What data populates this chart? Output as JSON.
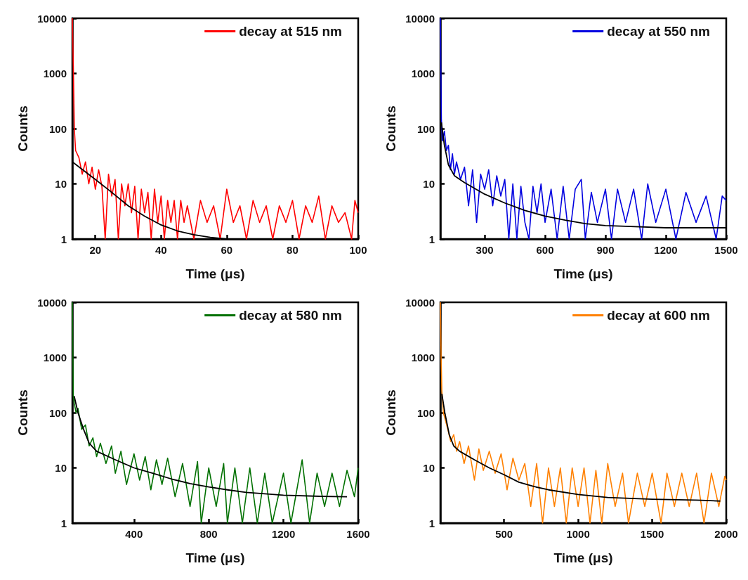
{
  "chart_data": [
    {
      "type": "line",
      "xlabel": "Time (μs)",
      "ylabel": "Counts",
      "xlim": [
        13,
        100
      ],
      "xticks": [
        20,
        40,
        60,
        80,
        100
      ],
      "ylim": [
        1,
        10000
      ],
      "yticks": [
        1,
        10,
        100,
        1000,
        10000
      ],
      "log": "y",
      "legend": "top right",
      "series": [
        {
          "name": "decay at 515 nm",
          "color": "#ff0000",
          "x": [
            13,
            13.3,
            13.6,
            14,
            15,
            16,
            17,
            18,
            19,
            20,
            21,
            22,
            23,
            24,
            25,
            26,
            27,
            28,
            29,
            30,
            31,
            32,
            33,
            34,
            35,
            36,
            37,
            38,
            39,
            40,
            41,
            42,
            43,
            44,
            45,
            46,
            47,
            48,
            50,
            52,
            54,
            56,
            58,
            60,
            62,
            64,
            66,
            68,
            70,
            72,
            74,
            76,
            78,
            80,
            82,
            84,
            86,
            88,
            90,
            92,
            94,
            96,
            98,
            99,
            100
          ],
          "values": [
            10000,
            1300,
            100,
            40,
            30,
            15,
            25,
            10,
            20,
            8,
            18,
            9,
            1,
            15,
            6,
            12,
            1,
            10,
            4,
            10,
            3,
            9,
            1,
            8,
            3,
            7,
            1,
            8,
            2,
            6,
            1,
            5,
            2,
            5,
            1,
            5,
            2,
            4,
            1,
            5,
            2,
            4,
            1,
            8,
            2,
            4,
            1,
            5,
            2,
            4,
            1,
            4,
            2,
            5,
            1,
            4,
            2,
            6,
            1,
            4,
            2,
            3,
            1,
            5,
            3
          ]
        },
        {
          "color": "#000000",
          "x": [
            13,
            20,
            25,
            30,
            35,
            40,
            45,
            50,
            55,
            60
          ],
          "values": [
            25,
            12,
            7,
            4,
            2.6,
            1.8,
            1.4,
            1.2,
            1.07,
            1
          ]
        }
      ]
    },
    {
      "type": "line",
      "xlabel": "Time (μs)",
      "ylabel": "Counts",
      "xlim": [
        80,
        1500
      ],
      "xticks": [
        300,
        600,
        900,
        1200,
        1500
      ],
      "ylim": [
        1,
        10000
      ],
      "yticks": [
        1,
        10,
        100,
        1000,
        10000
      ],
      "log": "y",
      "legend": "top right",
      "series": [
        {
          "name": "decay at 550 nm",
          "color": "#0000e0",
          "x": [
            80,
            85,
            90,
            100,
            110,
            120,
            130,
            140,
            150,
            160,
            180,
            200,
            220,
            240,
            260,
            280,
            300,
            320,
            340,
            360,
            380,
            400,
            420,
            440,
            460,
            480,
            500,
            520,
            540,
            560,
            580,
            600,
            630,
            660,
            690,
            720,
            750,
            780,
            800,
            830,
            860,
            900,
            930,
            960,
            1000,
            1040,
            1080,
            1110,
            1150,
            1200,
            1250,
            1300,
            1350,
            1400,
            1450,
            1480,
            1500
          ],
          "values": [
            10000,
            150,
            60,
            90,
            40,
            50,
            18,
            35,
            15,
            25,
            12,
            20,
            4,
            18,
            2,
            15,
            8,
            18,
            4,
            14,
            6,
            12,
            1,
            10,
            1,
            9,
            2,
            1,
            9,
            3,
            10,
            2,
            8,
            1,
            9,
            1,
            8,
            12,
            1,
            7,
            2,
            8,
            1,
            8,
            2,
            8,
            1,
            10,
            2,
            8,
            1,
            7,
            2,
            6,
            1,
            6,
            5
          ]
        },
        {
          "color": "#000000",
          "x": [
            85,
            100,
            120,
            150,
            200,
            300,
            400,
            500,
            600,
            700,
            800,
            900,
            1000,
            1200,
            1500
          ],
          "values": [
            130,
            50,
            22,
            14,
            10.5,
            6.5,
            4.5,
            3.3,
            2.6,
            2.2,
            1.9,
            1.75,
            1.7,
            1.6,
            1.6
          ]
        }
      ]
    },
    {
      "type": "line",
      "xlabel": "Time (μs)",
      "ylabel": "Counts",
      "xlim": [
        70,
        1600
      ],
      "xticks": [
        400,
        800,
        1200,
        1600
      ],
      "ylim": [
        1,
        10000
      ],
      "yticks": [
        1,
        10,
        100,
        1000,
        10000
      ],
      "log": "y",
      "legend": "top right",
      "series": [
        {
          "name": "decay at 580 nm",
          "color": "#007000",
          "x": [
            70,
            75,
            80,
            90,
            100,
            120,
            140,
            160,
            180,
            200,
            220,
            250,
            280,
            300,
            330,
            360,
            400,
            430,
            460,
            490,
            520,
            550,
            580,
            620,
            660,
            700,
            740,
            760,
            800,
            840,
            880,
            900,
            940,
            980,
            1020,
            1060,
            1100,
            1140,
            1200,
            1240,
            1300,
            1340,
            1380,
            1420,
            1460,
            1500,
            1540,
            1580,
            1600
          ],
          "values": [
            10000,
            200,
            150,
            100,
            120,
            50,
            60,
            25,
            35,
            16,
            28,
            12,
            25,
            8,
            20,
            5,
            18,
            6,
            16,
            4,
            14,
            5,
            15,
            3,
            12,
            2,
            13,
            1,
            10,
            2,
            12,
            1,
            10,
            1,
            10,
            1,
            8,
            1,
            8,
            1,
            14,
            1,
            8,
            2,
            8,
            2,
            9,
            3,
            10
          ]
        },
        {
          "color": "#000000",
          "x": [
            80,
            100,
            130,
            160,
            200,
            300,
            400,
            500,
            600,
            700,
            800,
            900,
            1000,
            1100,
            1200,
            1400,
            1540
          ],
          "values": [
            200,
            100,
            50,
            28,
            20,
            14,
            10,
            8,
            6.3,
            5.2,
            4.5,
            4,
            3.6,
            3.4,
            3.2,
            3.05,
            3
          ]
        }
      ]
    },
    {
      "type": "line",
      "xlabel": "Time (μs)",
      "ylabel": "Counts",
      "xlim": [
        70,
        2000
      ],
      "xticks": [
        500,
        1000,
        1500,
        2000
      ],
      "ylim": [
        1,
        10000
      ],
      "yticks": [
        1,
        10,
        100,
        1000,
        10000
      ],
      "log": "y",
      "legend": "top right",
      "series": [
        {
          "name": "decay at 600 nm",
          "color": "#ff8000",
          "x": [
            70,
            75,
            80,
            90,
            100,
            120,
            140,
            160,
            180,
            200,
            230,
            260,
            300,
            330,
            360,
            400,
            440,
            480,
            520,
            560,
            600,
            640,
            680,
            720,
            760,
            800,
            840,
            880,
            920,
            960,
            1000,
            1040,
            1080,
            1120,
            1160,
            1200,
            1250,
            1300,
            1340,
            1400,
            1450,
            1500,
            1560,
            1600,
            1650,
            1700,
            1750,
            1800,
            1850,
            1900,
            1950,
            1990,
            2000
          ],
          "values": [
            10000,
            1000,
            250,
            100,
            80,
            50,
            30,
            40,
            20,
            30,
            12,
            25,
            6,
            22,
            9,
            20,
            8,
            18,
            4,
            15,
            6,
            12,
            2,
            12,
            1,
            10,
            2,
            10,
            1,
            10,
            2,
            10,
            1,
            9,
            1,
            12,
            2,
            8,
            1,
            8,
            2,
            8,
            1,
            8,
            2,
            8,
            2,
            8,
            1,
            8,
            2,
            7,
            6
          ]
        },
        {
          "color": "#000000",
          "x": [
            80,
            100,
            130,
            160,
            200,
            300,
            400,
            500,
            600,
            700,
            800,
            1000,
            1200,
            1500,
            1800,
            1960
          ],
          "values": [
            220,
            100,
            40,
            25,
            20,
            14,
            10,
            7.5,
            5.5,
            4.6,
            4,
            3.3,
            2.9,
            2.7,
            2.6,
            2.5
          ]
        }
      ]
    }
  ]
}
